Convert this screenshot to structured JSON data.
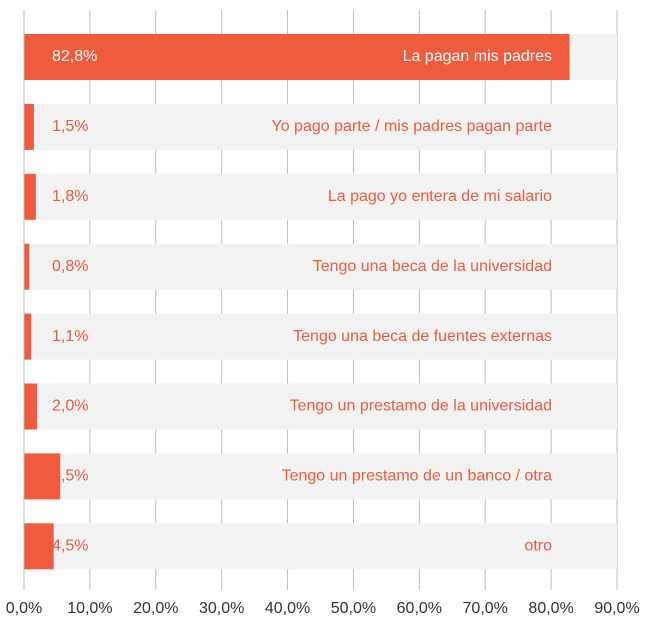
{
  "chart_data": {
    "type": "barh",
    "categories": [
      "La pagan mis padres",
      "Yo pago parte / mis padres pagan parte",
      "La pago yo entera de mi salario",
      "Tengo una beca de la universidad",
      "Tengo una beca de fuentes externas",
      "Tengo un prestamo de la universidad",
      "Tengo un prestamo de un banco / otra",
      "otro"
    ],
    "values": [
      82.8,
      1.5,
      1.8,
      0.8,
      1.1,
      2.0,
      5.5,
      4.5
    ],
    "value_labels": [
      "82,8%",
      "1,5%",
      "1,8%",
      "0,8%",
      "1,1%",
      "2,0%",
      "5,5%",
      "4,5%"
    ],
    "color": "#ee5b3d",
    "xlim": [
      0,
      90
    ],
    "xticks": [
      {
        "value": 0,
        "label": "0,0%"
      },
      {
        "value": 10,
        "label": "10,0%"
      },
      {
        "value": 20,
        "label": "20,0%"
      },
      {
        "value": 30,
        "label": "30,0%"
      },
      {
        "value": 40,
        "label": "40,0%"
      },
      {
        "value": 50,
        "label": "50,0%"
      },
      {
        "value": 60,
        "label": "60,0%"
      },
      {
        "value": 70,
        "label": "70,0%"
      },
      {
        "value": 80,
        "label": "80,0%"
      },
      {
        "value": 90,
        "label": "90,0%"
      }
    ],
    "grid": true
  }
}
